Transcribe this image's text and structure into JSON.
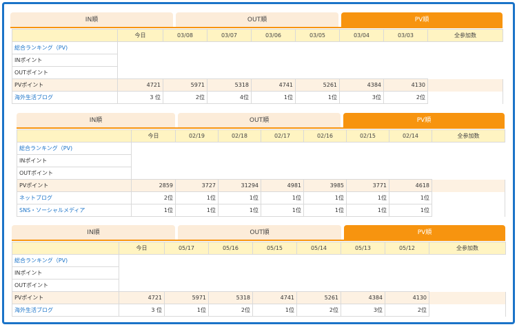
{
  "panels": [
    {
      "tabs": [
        "IN順",
        "OUT順",
        "PV順"
      ],
      "header": [
        "今日",
        "03/08",
        "03/07",
        "03/06",
        "03/05",
        "03/04",
        "03/03",
        "全参加数"
      ],
      "rows": [
        {
          "label": "総合ランキング（PV)",
          "link": true,
          "values": []
        },
        {
          "label": "INポイント",
          "link": false,
          "values": []
        },
        {
          "label": "OUTポイント",
          "link": false,
          "values": []
        },
        {
          "label": "PVポイント",
          "link": false,
          "pv": true,
          "values": [
            "4721",
            "5971",
            "5318",
            "4741",
            "5261",
            "4384",
            "4130"
          ]
        },
        {
          "label": "海外生活ブログ",
          "link": true,
          "values": [
            "3 位",
            "2位",
            "4位",
            "1位",
            "1位",
            "3位",
            "2位"
          ]
        }
      ]
    },
    {
      "tabs": [
        "IN順",
        "OUT順",
        "PV順"
      ],
      "header": [
        "今日",
        "02/19",
        "02/18",
        "02/17",
        "02/16",
        "02/15",
        "02/14",
        "全参加数"
      ],
      "rows": [
        {
          "label": "総合ランキング（PV)",
          "link": true,
          "values": []
        },
        {
          "label": "INポイント",
          "link": false,
          "values": []
        },
        {
          "label": "OUTポイント",
          "link": false,
          "values": []
        },
        {
          "label": "PVポイント",
          "link": false,
          "pv": true,
          "values": [
            "2859",
            "3727",
            "31294",
            "4981",
            "3985",
            "3771",
            "4618"
          ]
        },
        {
          "label": "ネットブログ",
          "link": true,
          "values": [
            "2位",
            "1位",
            "1位",
            "1位",
            "1位",
            "1位",
            "1位"
          ]
        },
        {
          "label": "SNS・ソーシャルメディア",
          "link": true,
          "values": [
            "1位",
            "1位",
            "1位",
            "1位",
            "1位",
            "1位",
            "1位"
          ]
        }
      ]
    },
    {
      "tabs": [
        "IN順",
        "OUT順",
        "PV順"
      ],
      "header": [
        "今日",
        "05/17",
        "05/16",
        "05/15",
        "05/14",
        "05/13",
        "05/12",
        "全参加数"
      ],
      "rows": [
        {
          "label": "総合ランキング（PV)",
          "link": true,
          "values": []
        },
        {
          "label": "INポイント",
          "link": false,
          "values": []
        },
        {
          "label": "OUTポイント",
          "link": false,
          "values": []
        },
        {
          "label": "PVポイント",
          "link": false,
          "pv": true,
          "values": [
            "4721",
            "5971",
            "5318",
            "4741",
            "5261",
            "4384",
            "4130"
          ]
        },
        {
          "label": "海外生活ブログ",
          "link": true,
          "values": [
            "3 位",
            "1位",
            "2位",
            "1位",
            "2位",
            "3位",
            "2位"
          ]
        }
      ]
    }
  ],
  "colors": {
    "frame": "#1a73c8",
    "tab_active": "#f7940f",
    "tab_inactive": "#fcecd9",
    "header_bg": "#fff4c2",
    "link": "#1a73c8"
  }
}
